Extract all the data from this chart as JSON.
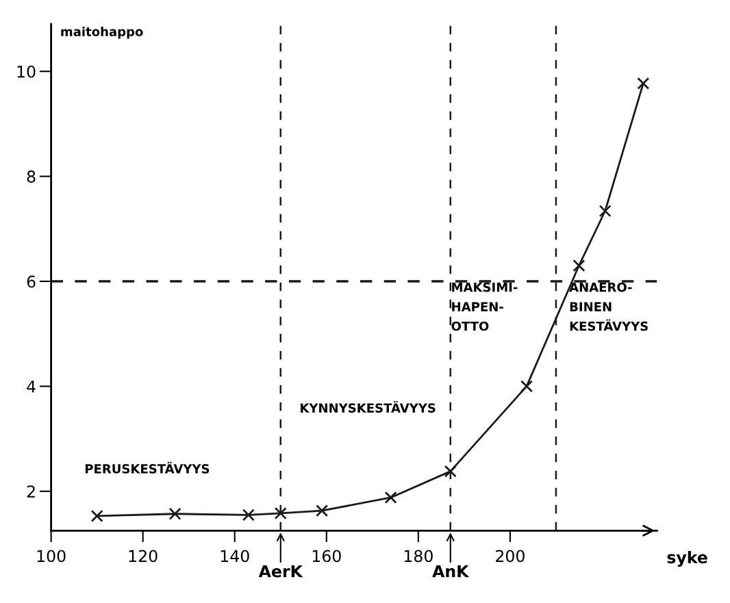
{
  "chart_data": {
    "type": "line",
    "xlabel": "syke",
    "ylabel": "maitohappo",
    "x": [
      110,
      127,
      143,
      150,
      159,
      174,
      187,
      203.6,
      215,
      220.7,
      229
    ],
    "series": [
      {
        "color": "#1a1a1a",
        "values": [
          1.53,
          1.57,
          1.55,
          1.58,
          1.63,
          1.88,
          2.38,
          4.0,
          6.3,
          7.34,
          9.77
        ]
      }
    ],
    "marker": "cross",
    "line_style": "solid",
    "xlim": [
      100,
      232
    ],
    "ylim": [
      1.25,
      10.9
    ],
    "xticks": [
      100,
      120,
      140,
      160,
      180,
      200
    ],
    "yticks": [
      2,
      4,
      6,
      8,
      10
    ],
    "ref_lines": [
      {
        "axis": "y",
        "value": 6,
        "line_style": "dashed"
      },
      {
        "axis": "x",
        "value": 150,
        "label": "AerK",
        "line_style": "dashed"
      },
      {
        "axis": "x",
        "value": 187,
        "label": "AnK",
        "line_style": "dashed"
      },
      {
        "axis": "x",
        "value": 210,
        "line_style": "dashed"
      }
    ],
    "annotations": [
      "PERUSKESTÄVYYS",
      "KYNNYSKESTÄVYYS",
      "MAKSIMI-\nHAPEN-\nOTTO",
      "ANAERO-\nBINEN\nKESTÄVYYS"
    ],
    "grid": false,
    "legend": false
  }
}
